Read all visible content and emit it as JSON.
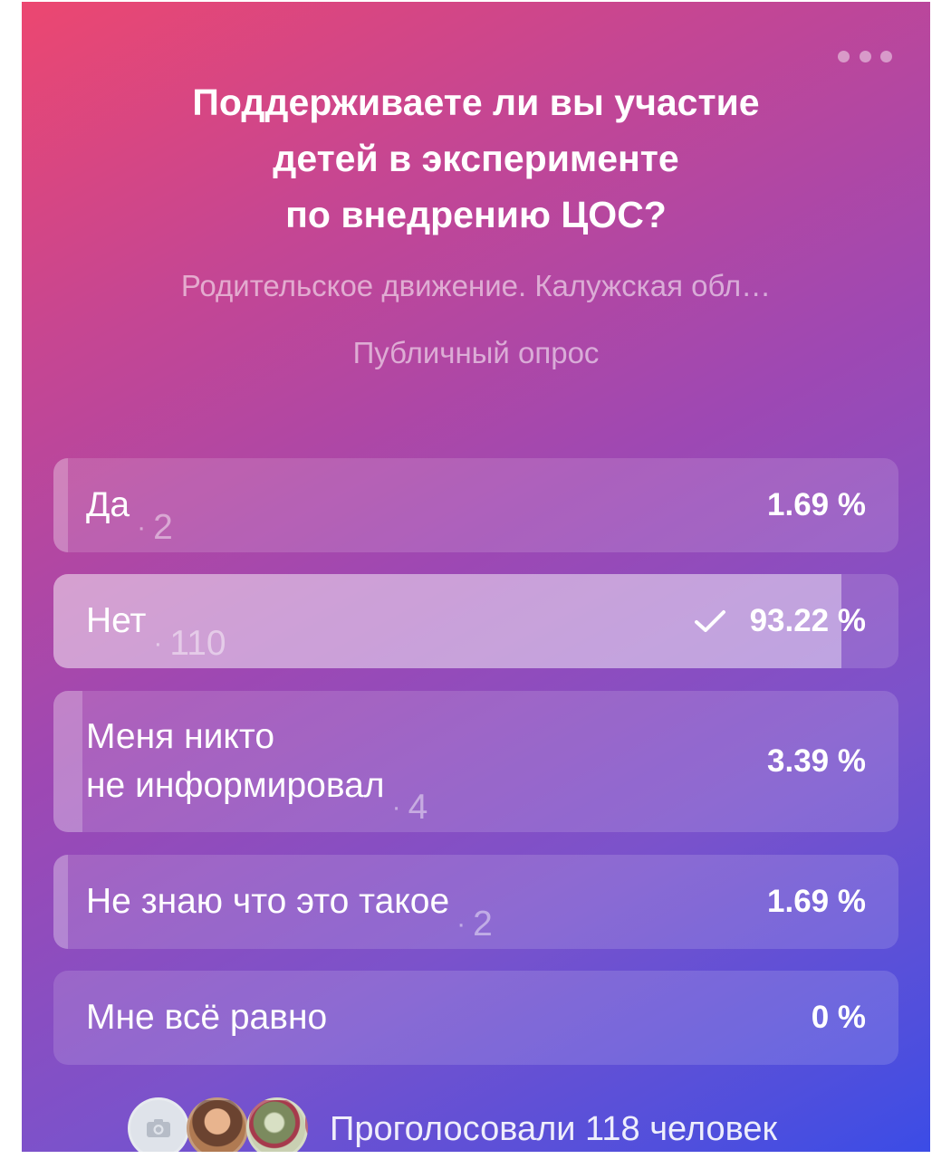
{
  "poll": {
    "question": "Поддерживаете ли вы участие\nдетей в эксперименте\nпо внедрению ЦОС?",
    "author": "Родительское движение. Калужская обл…",
    "type": "Публичный опрос",
    "menu_icon": "more-horizontal-icon",
    "options": [
      {
        "label": "Да",
        "count": "2",
        "percent": "1.69 %",
        "fraction": 0.0169,
        "voted": false
      },
      {
        "label": "Нет",
        "count": "110",
        "percent": "93.22 %",
        "fraction": 0.9322,
        "voted": true
      },
      {
        "label": "Меня никто\nне информировал",
        "count": "4",
        "percent": "3.39 %",
        "fraction": 0.0339,
        "voted": false
      },
      {
        "label": "Не знаю что это такое",
        "count": "2",
        "percent": "1.69 %",
        "fraction": 0.0169,
        "voted": false
      },
      {
        "label": "Мне всё равно",
        "count": "",
        "percent": "0 %",
        "fraction": 0,
        "voted": false
      }
    ],
    "voted_icon": "checkmark-icon",
    "footer": {
      "voters_text": "Проголосовали 118 человек",
      "avatars": [
        "camera-icon",
        "voter-avatar",
        "voter-avatar"
      ]
    }
  },
  "colors": {
    "gradient_start": "#ec4770",
    "gradient_end": "#3b4ce6",
    "text": "#ffffff"
  }
}
